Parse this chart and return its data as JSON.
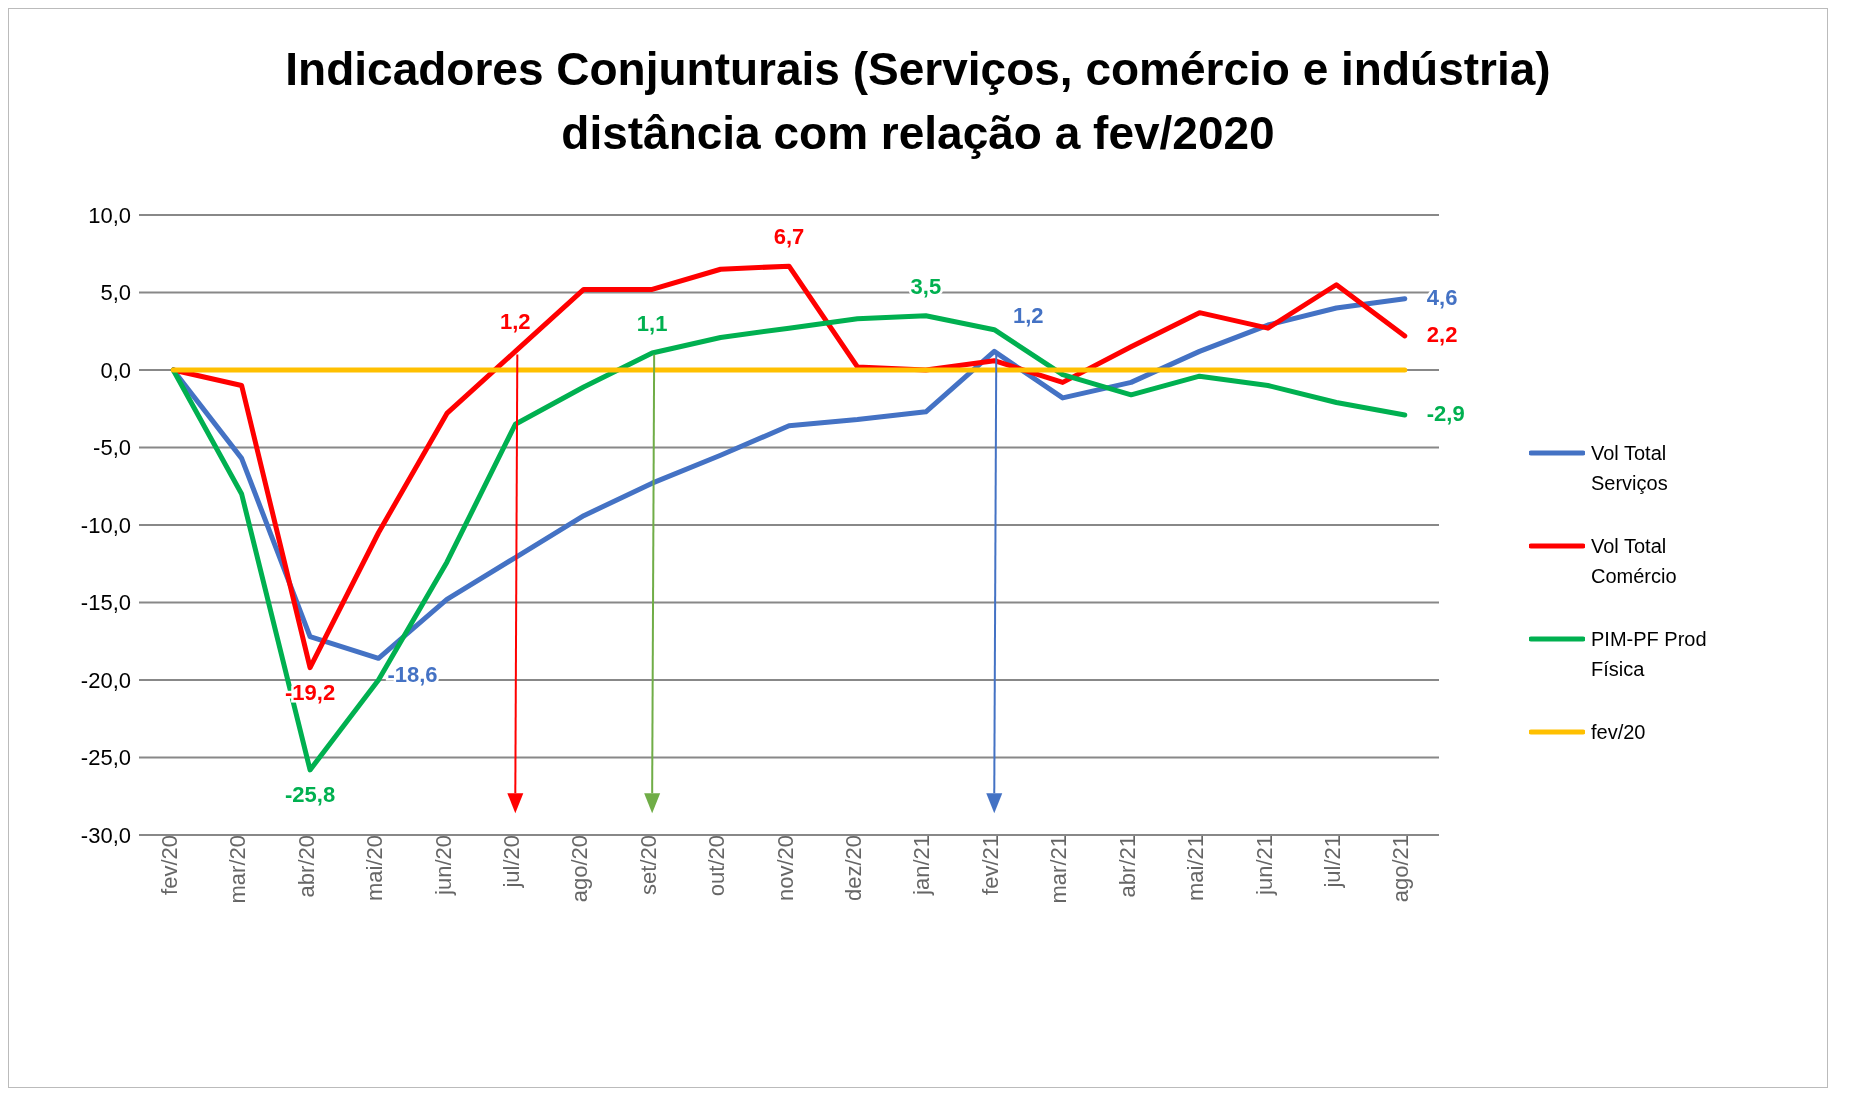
{
  "chart_data": {
    "type": "line",
    "title": "Indicadores Conjunturais (Serviços, comércio e indústria)",
    "subtitle": "distância com relação a fev/2020",
    "categories": [
      "fev/20",
      "mar/20",
      "abr/20",
      "mai/20",
      "jun/20",
      "jul/20",
      "ago/20",
      "set/20",
      "out/20",
      "nov/20",
      "dez/20",
      "jan/21",
      "fev/21",
      "mar/21",
      "abr/21",
      "mai/21",
      "jun/21",
      "jul/21",
      "ago/21"
    ],
    "series": [
      {
        "name": "Vol Total Serviços",
        "color": "#4472c4",
        "values": [
          0,
          -5.7,
          -17.2,
          -18.6,
          -14.8,
          -12.1,
          -9.4,
          -7.3,
          -5.5,
          -3.6,
          -3.2,
          -2.7,
          1.2,
          -1.8,
          -0.8,
          1.2,
          2.9,
          4.0,
          4.6
        ],
        "value_labels": [
          null,
          null,
          null,
          "-18,6",
          null,
          null,
          null,
          null,
          null,
          null,
          null,
          null,
          "1,2",
          null,
          null,
          null,
          null,
          null,
          "4,6"
        ]
      },
      {
        "name": "Vol Total Comércio",
        "color": "#ff0000",
        "values": [
          0,
          -1.0,
          -19.2,
          -10.5,
          -2.8,
          1.2,
          5.2,
          5.2,
          6.5,
          6.7,
          0.2,
          0.0,
          0.6,
          -0.8,
          1.5,
          3.7,
          2.7,
          5.5,
          2.2
        ],
        "value_labels": [
          null,
          null,
          "-19,2",
          null,
          null,
          "1,2",
          null,
          null,
          null,
          "6,7",
          null,
          null,
          null,
          null,
          null,
          null,
          null,
          null,
          "2,2"
        ]
      },
      {
        "name": "PIM-PF Prod Física",
        "color": "#00b050",
        "values": [
          0,
          -8.0,
          -25.8,
          -20.0,
          -12.4,
          -3.5,
          -1.1,
          1.1,
          2.1,
          2.7,
          3.3,
          3.5,
          2.6,
          -0.3,
          -1.6,
          -0.4,
          -1.0,
          -2.1,
          -2.9
        ],
        "value_labels": [
          null,
          null,
          "-25,8",
          null,
          null,
          null,
          null,
          "1,1",
          null,
          null,
          null,
          "3,5",
          null,
          null,
          null,
          null,
          null,
          null,
          "-2,9"
        ]
      },
      {
        "name": "fev/20",
        "color": "#ffc000",
        "values": [
          0,
          0,
          0,
          0,
          0,
          0,
          0,
          0,
          0,
          0,
          0,
          0,
          0,
          0,
          0,
          0,
          0,
          0,
          0
        ]
      }
    ],
    "ylim": [
      -30,
      10
    ],
    "yticks": [
      {
        "value": -30,
        "label": "-30,0"
      },
      {
        "value": -25,
        "label": "-25,0"
      },
      {
        "value": -20,
        "label": "-20,0"
      },
      {
        "value": -15,
        "label": "-15,0"
      },
      {
        "value": -10,
        "label": "-10,0"
      },
      {
        "value": -5,
        "label": "-5,0"
      },
      {
        "value": 0,
        "label": "0,0"
      },
      {
        "value": 5,
        "label": "5,0"
      },
      {
        "value": 10,
        "label": "10,0"
      }
    ],
    "grid": "y",
    "legend": "right",
    "marker": "none",
    "line_style": "solid"
  }
}
